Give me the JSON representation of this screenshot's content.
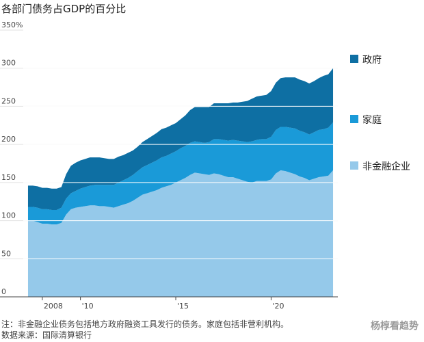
{
  "title": "各部门债务占GDP的百分比",
  "note": "注：非金融企业债务包括地方政府融资工具发行的债务。家庭包括非营利机构。",
  "source": "数据来源：国际清算银行",
  "watermark": "杨椁看趋势",
  "colors": {
    "government": "#0e6fa3",
    "household": "#1a9ad8",
    "nonfinancial": "#95c9ea",
    "grid": "#ffffff",
    "axis_baseline": "#444444"
  },
  "chart_data": {
    "type": "area",
    "stacked": true,
    "title": "各部门债务占GDP的百分比",
    "ylim": [
      0,
      350
    ],
    "yticks": [
      0,
      50,
      100,
      150,
      200,
      250,
      300,
      350
    ],
    "ytick_labels": [
      "0",
      "50",
      "100",
      "150",
      "200",
      "250",
      "300",
      "350%"
    ],
    "xlim": [
      2007.0,
      2023.5
    ],
    "xticks": [
      2008,
      2010,
      2015,
      2020
    ],
    "xtick_labels": [
      "2008",
      "'10",
      "'15",
      "'20"
    ],
    "grid": true,
    "legend_position": "right",
    "x": [
      2007.25,
      2007.5,
      2007.75,
      2008.0,
      2008.25,
      2008.5,
      2008.75,
      2009.0,
      2009.25,
      2009.5,
      2009.75,
      2010.0,
      2010.25,
      2010.5,
      2010.75,
      2011.0,
      2011.25,
      2011.5,
      2011.75,
      2012.0,
      2012.25,
      2012.5,
      2012.75,
      2013.0,
      2013.25,
      2013.5,
      2013.75,
      2014.0,
      2014.25,
      2014.5,
      2014.75,
      2015.0,
      2015.25,
      2015.5,
      2015.75,
      2016.0,
      2016.25,
      2016.5,
      2016.75,
      2017.0,
      2017.25,
      2017.5,
      2017.75,
      2018.0,
      2018.25,
      2018.5,
      2018.75,
      2019.0,
      2019.25,
      2019.5,
      2019.75,
      2020.0,
      2020.25,
      2020.5,
      2020.75,
      2021.0,
      2021.25,
      2021.5,
      2021.75,
      2022.0,
      2022.25,
      2022.5,
      2022.75,
      2023.0,
      2023.25
    ],
    "series": [
      {
        "name": "非金融企业",
        "key": "nonfinancial",
        "values": [
          100,
          100,
          98,
          96,
          96,
          95,
          95,
          97,
          108,
          115,
          117,
          118,
          119,
          120,
          120,
          119,
          119,
          118,
          117,
          119,
          121,
          123,
          126,
          130,
          134,
          136,
          138,
          140,
          143,
          145,
          147,
          150,
          153,
          156,
          160,
          163,
          162,
          161,
          160,
          162,
          161,
          159,
          157,
          157,
          155,
          153,
          151,
          150,
          152,
          152,
          152,
          154,
          162,
          166,
          165,
          163,
          161,
          158,
          156,
          153,
          155,
          157,
          158,
          159,
          166
        ]
      },
      {
        "name": "家庭",
        "key": "household",
        "values": [
          18,
          18,
          19,
          19,
          19,
          19,
          19,
          20,
          21,
          21,
          22,
          24,
          25,
          26,
          27,
          28,
          28,
          29,
          30,
          31,
          32,
          33,
          34,
          35,
          36,
          37,
          38,
          39,
          40,
          40,
          41,
          41,
          42,
          42,
          42,
          41,
          41,
          41,
          43,
          45,
          46,
          47,
          48,
          49,
          50,
          51,
          52,
          54,
          54,
          55,
          55,
          56,
          57,
          57,
          58,
          59,
          60,
          60,
          60,
          60,
          61,
          62,
          62,
          63,
          63
        ]
      },
      {
        "name": "政府",
        "key": "government",
        "values": [
          28,
          28,
          28,
          28,
          28,
          28,
          28,
          27,
          32,
          36,
          37,
          37,
          37,
          37,
          36,
          36,
          35,
          34,
          34,
          34,
          33,
          33,
          32,
          32,
          33,
          34,
          35,
          36,
          37,
          37,
          37,
          37,
          38,
          40,
          43,
          45,
          46,
          47,
          46,
          47,
          47,
          48,
          49,
          49,
          50,
          52,
          54,
          56,
          57,
          57,
          58,
          60,
          62,
          64,
          65,
          66,
          67,
          67,
          67,
          67,
          67,
          68,
          70,
          70,
          71
        ]
      }
    ]
  }
}
